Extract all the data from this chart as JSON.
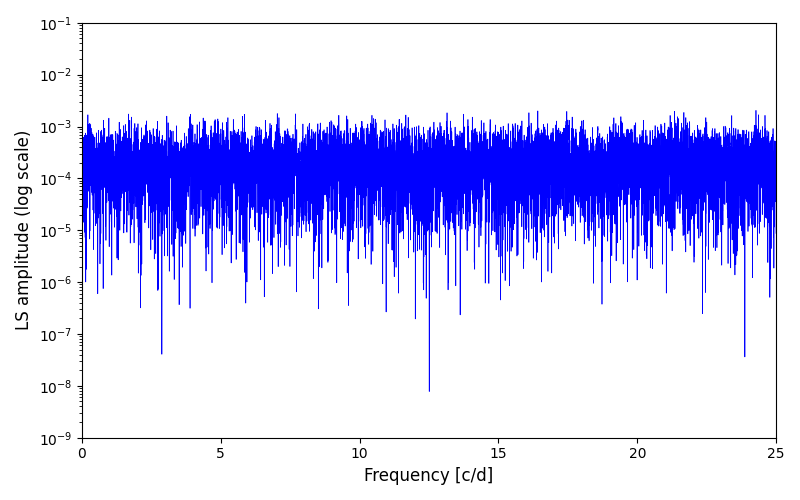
{
  "xlabel": "Frequency [c/d]",
  "ylabel": "LS amplitude (log scale)",
  "line_color": "#0000ff",
  "xlim": [
    0,
    25
  ],
  "ylim": [
    1e-09,
    0.1
  ],
  "background_color": "#ffffff",
  "figsize": [
    8.0,
    5.0
  ],
  "dpi": 100,
  "freq_max": 25.0,
  "n_freq": 10000,
  "n_obs": 600,
  "seed": 17,
  "linewidth": 0.5
}
